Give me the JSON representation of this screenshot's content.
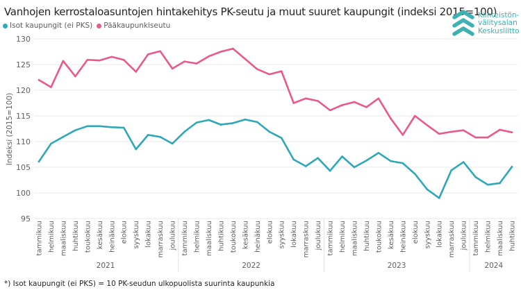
{
  "title": "Vanhojen kerrostaloasuntojen hintakehitys PK-seutu ja muut suuret kaupungit (indeksi 2015=100)",
  "logo": {
    "icon": "chevrons-up-icon",
    "lines": [
      "Kiinteistön-",
      "välitysalan",
      "Keskusliitto"
    ],
    "color": "#3fb0b4"
  },
  "footnote": "*) Isot kaupungit (ei PKS) = 10 PK-seudun ulkopuolista suurinta kaupunkia",
  "chart_data": {
    "type": "line",
    "title": "Vanhojen kerrostaloasuntojen hintakehitys PK-seutu ja muut suuret kaupungit (indeksi 2015=100)",
    "xlabel": "",
    "ylabel": "Indeksi (2015=100)",
    "ylim": [
      95,
      130
    ],
    "yticks": [
      95,
      100,
      105,
      110,
      115,
      120,
      125,
      130
    ],
    "grid": true,
    "legend_position": "top-left",
    "x": [
      "tammikuu",
      "helmikuu",
      "maaliskuu",
      "huhtikuu",
      "toukokuu",
      "kesäkuu",
      "heinäkuu",
      "elokuu",
      "syyskuu",
      "lokakuu",
      "marraskuu",
      "joulukuu",
      "tammikuu",
      "helmikuu",
      "maaliskuu",
      "huhtikuu",
      "toukokuu",
      "kesäkuu",
      "heinäkuu",
      "elokuu",
      "syyskuu",
      "lokakuu",
      "marraskuu",
      "joulukuu",
      "tammikuu",
      "helmikuu",
      "maaliskuu",
      "huhtikuu",
      "toukokuu",
      "kesäkuu",
      "heinäkuu",
      "elokuu",
      "syyskuu",
      "lokakuu",
      "marraskuu",
      "joulukuu",
      "tammikuu",
      "helmikuu",
      "maaliskuu",
      "huhtikuu"
    ],
    "year_groups": [
      {
        "year": "2021",
        "count": 12
      },
      {
        "year": "2022",
        "count": 12
      },
      {
        "year": "2023",
        "count": 12
      },
      {
        "year": "2024",
        "count": 4
      }
    ],
    "series": [
      {
        "name": "Isot kaupungit (ei PKS)",
        "color": "#2ea8b7",
        "values": [
          106.1,
          109.6,
          110.9,
          112.2,
          113.0,
          113.0,
          112.8,
          112.7,
          108.5,
          111.3,
          110.9,
          109.6,
          111.9,
          113.7,
          114.2,
          113.3,
          113.6,
          114.3,
          113.8,
          111.9,
          110.7,
          106.5,
          105.2,
          106.8,
          104.3,
          107.1,
          105.0,
          106.3,
          107.8,
          106.2,
          105.8,
          103.7,
          100.7,
          99.0,
          104.4,
          106.0,
          103.1,
          101.6,
          101.9,
          105.1
        ]
      },
      {
        "name": "Pääkaupunkiseutu",
        "color": "#e9598a",
        "values": [
          122.0,
          120.6,
          125.7,
          122.7,
          125.9,
          125.8,
          126.5,
          125.9,
          123.6,
          127.0,
          127.6,
          124.2,
          125.6,
          125.2,
          126.6,
          127.5,
          128.1,
          126.1,
          124.1,
          123.1,
          123.7,
          117.5,
          118.4,
          117.9,
          116.1,
          117.1,
          117.7,
          116.7,
          118.4,
          114.5,
          111.3,
          115.0,
          113.2,
          111.5,
          111.9,
          112.2,
          110.8,
          110.8,
          112.3,
          111.8
        ]
      }
    ]
  }
}
